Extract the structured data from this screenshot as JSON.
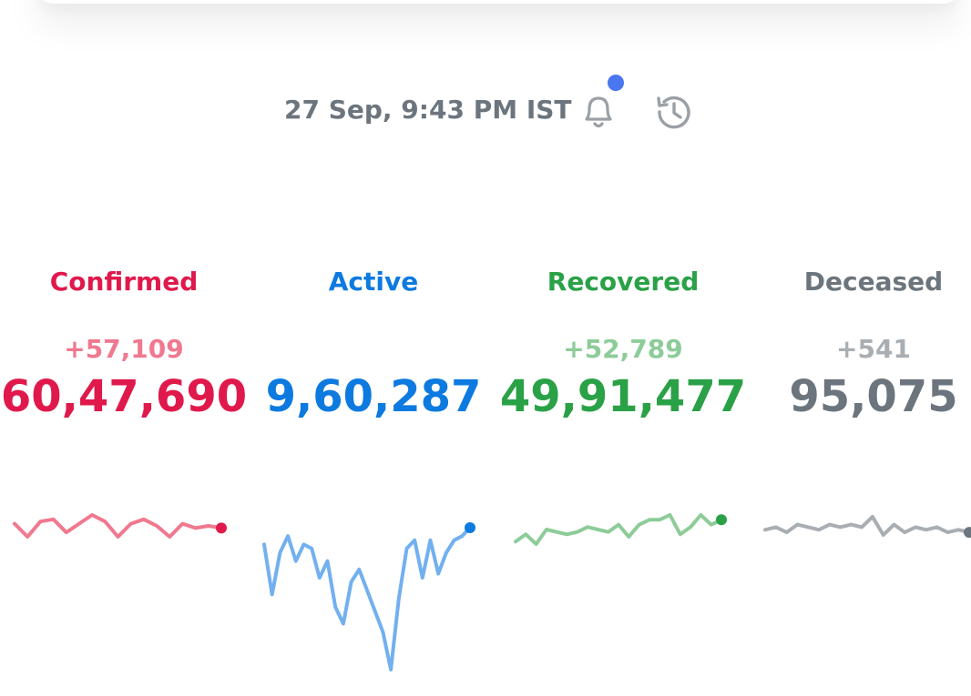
{
  "header": {
    "timestamp": "27 Sep, 9:43 PM IST",
    "bell_icon": "bell-icon",
    "history_icon": "history-icon",
    "notification_dot_color": "#4a76f0"
  },
  "stats": {
    "confirmed": {
      "label": "Confirmed",
      "delta": "+57,109",
      "total": "60,47,690",
      "color": "#e0194c"
    },
    "active": {
      "label": "Active",
      "delta": "",
      "total": "9,60,287",
      "color": "#0d7ae0"
    },
    "recovered": {
      "label": "Recovered",
      "delta": "+52,789",
      "total": "49,91,477",
      "color": "#2aa147"
    },
    "deceased": {
      "label": "Deceased",
      "delta": "+541",
      "total": "95,075",
      "color": "#6c757d"
    }
  },
  "chart_data": [
    {
      "type": "line",
      "series": [
        {
          "values": [
            96,
            90,
            97,
            98,
            92,
            96,
            100,
            97,
            90,
            96,
            98,
            95,
            90,
            96,
            94,
            95,
            94
          ]
        }
      ],
      "color": "#f0788f",
      "marker_color": "#e0194c"
    },
    {
      "type": "line",
      "series": [
        {
          "values": [
            60,
            36,
            56,
            64,
            52,
            60,
            58,
            44,
            52,
            30,
            22,
            42,
            48,
            38,
            28,
            18,
            0,
            34,
            58,
            62,
            44,
            62,
            46,
            56,
            62,
            64,
            68
          ]
        }
      ],
      "color": "#72b0f0",
      "marker_color": "#0d7ae0"
    },
    {
      "type": "line",
      "series": [
        {
          "values": [
            93,
            96,
            92,
            98,
            97,
            96,
            97,
            99,
            98,
            97,
            100,
            95,
            100,
            102,
            102,
            104,
            96,
            99,
            104,
            100,
            102
          ]
        }
      ],
      "color": "#8dcc99",
      "marker_color": "#2aa147"
    },
    {
      "type": "line",
      "series": [
        {
          "values": [
            99,
            100,
            98,
            101,
            100,
            99,
            101,
            100,
            101,
            100,
            104,
            97,
            101,
            98,
            100,
            99,
            100,
            98,
            99,
            98
          ]
        }
      ],
      "color": "#a9aeb3",
      "marker_color": "#6c757d"
    }
  ]
}
